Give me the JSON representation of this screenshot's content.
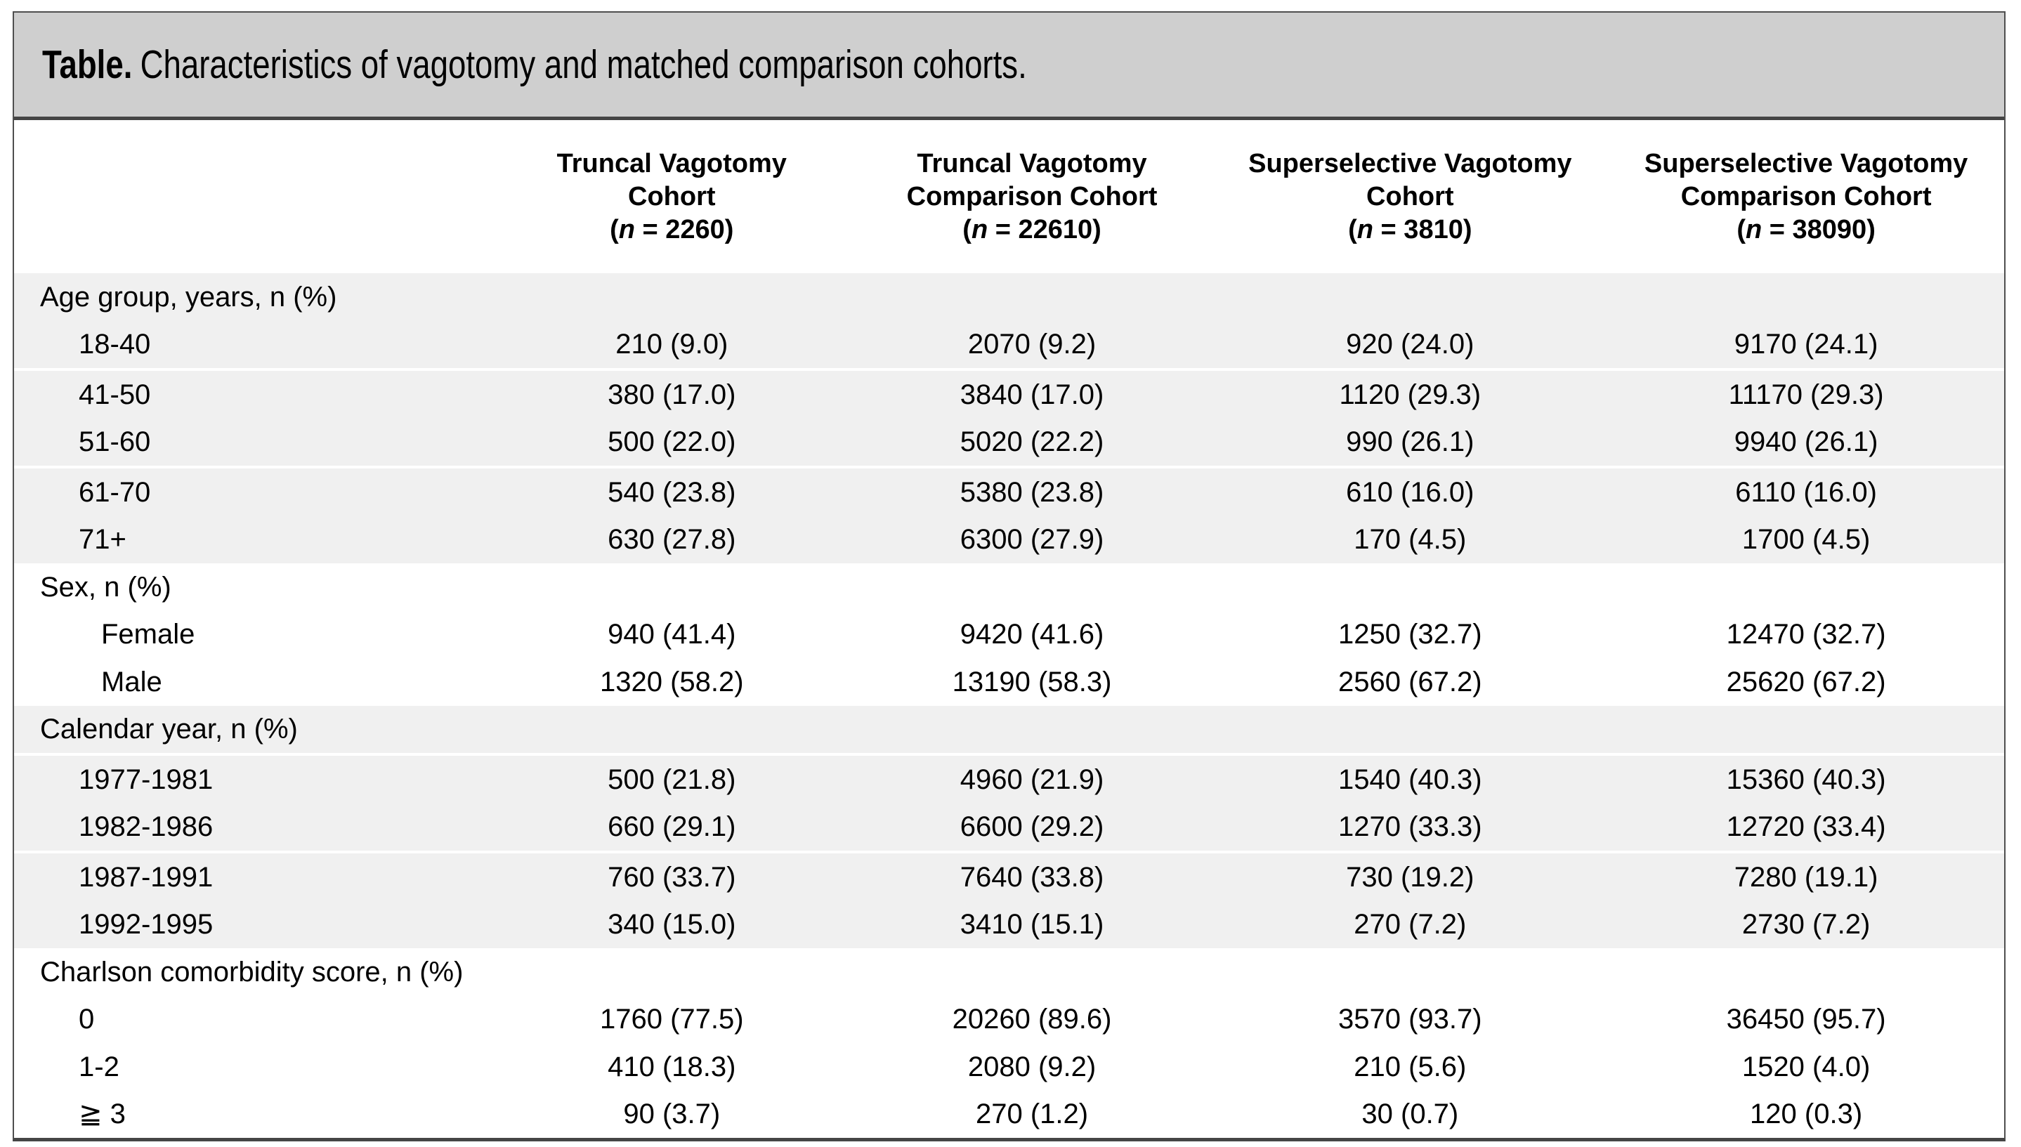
{
  "title": {
    "label": "Table.",
    "text": "Characteristics of vagotomy and matched comparison cohorts."
  },
  "colors": {
    "title_bar_bg": "#cfcfcf",
    "row_band_bg": "#f0f0f0",
    "border_dark": "#454545",
    "text": "#000000"
  },
  "columns": [
    {
      "line1": "Truncal Vagotomy",
      "line2": "Cohort",
      "n_open": "(",
      "n_italic": "n",
      "n_rest": " = 2260)"
    },
    {
      "line1": "Truncal Vagotomy",
      "line2": "Comparison Cohort",
      "n_open": "(",
      "n_italic": "n",
      "n_rest": " = 22610)"
    },
    {
      "line1": "Superselective Vagotomy",
      "line2": "Cohort",
      "n_open": "(",
      "n_italic": "n",
      "n_rest": " = 3810)"
    },
    {
      "line1": "Superselective Vagotomy",
      "line2": "Comparison Cohort",
      "n_open": "(",
      "n_italic": "n",
      "n_rest": " = 38090)"
    }
  ],
  "rows": [
    {
      "label": "Age group, years, n (%)",
      "c1": "",
      "c2": "",
      "c3": "",
      "c4": ""
    },
    {
      "label": "18-40",
      "c1": "210 (9.0)",
      "c2": "2070 (9.2)",
      "c3": "920 (24.0)",
      "c4": "9170 (24.1)"
    },
    {
      "label": "41-50",
      "c1": "380 (17.0)",
      "c2": "3840 (17.0)",
      "c3": "1120 (29.3)",
      "c4": "11170 (29.3)"
    },
    {
      "label": "51-60",
      "c1": "500 (22.0)",
      "c2": "5020 (22.2)",
      "c3": "990 (26.1)",
      "c4": "9940 (26.1)"
    },
    {
      "label": "61-70",
      "c1": "540 (23.8)",
      "c2": "5380 (23.8)",
      "c3": "610 (16.0)",
      "c4": "6110 (16.0)"
    },
    {
      "label": "71+",
      "c1": "630 (27.8)",
      "c2": "6300 (27.9)",
      "c3": "170 (4.5)",
      "c4": "1700 (4.5)"
    },
    {
      "label": "Sex, n (%)",
      "c1": "",
      "c2": "",
      "c3": "",
      "c4": ""
    },
    {
      "label": "Female",
      "c1": "940 (41.4)",
      "c2": "9420 (41.6)",
      "c3": "1250 (32.7)",
      "c4": "12470 (32.7)"
    },
    {
      "label": "Male",
      "c1": "1320 (58.2)",
      "c2": "13190 (58.3)",
      "c3": "2560 (67.2)",
      "c4": "25620 (67.2)"
    },
    {
      "label": "Calendar year, n (%)",
      "c1": "",
      "c2": "",
      "c3": "",
      "c4": ""
    },
    {
      "label": "1977-1981",
      "c1": "500 (21.8)",
      "c2": "4960 (21.9)",
      "c3": "1540 (40.3)",
      "c4": "15360 (40.3)"
    },
    {
      "label": "1982-1986",
      "c1": "660 (29.1)",
      "c2": "6600 (29.2)",
      "c3": "1270 (33.3)",
      "c4": "12720 (33.4)"
    },
    {
      "label": "1987-1991",
      "c1": "760 (33.7)",
      "c2": "7640 (33.8)",
      "c3": "730 (19.2)",
      "c4": "7280 (19.1)"
    },
    {
      "label": "1992-1995",
      "c1": "340 (15.0)",
      "c2": "3410 (15.1)",
      "c3": "270 (7.2)",
      "c4": "2730 (7.2)"
    },
    {
      "label": "Charlson comorbidity score, n (%)",
      "c1": "",
      "c2": "",
      "c3": "",
      "c4": ""
    },
    {
      "label": "0",
      "c1": "1760 (77.5)",
      "c2": "20260 (89.6)",
      "c3": "3570 (93.7)",
      "c4": "36450 (95.7)"
    },
    {
      "label": "1-2",
      "c1": "410 (18.3)",
      "c2": "2080 (9.2)",
      "c3": "210 (5.6)",
      "c4": "1520 (4.0)"
    },
    {
      "label": "≧ 3",
      "c1": "90 (3.7)",
      "c2": "270 (1.2)",
      "c3": "30 (0.7)",
      "c4": "120 (0.3)"
    }
  ]
}
